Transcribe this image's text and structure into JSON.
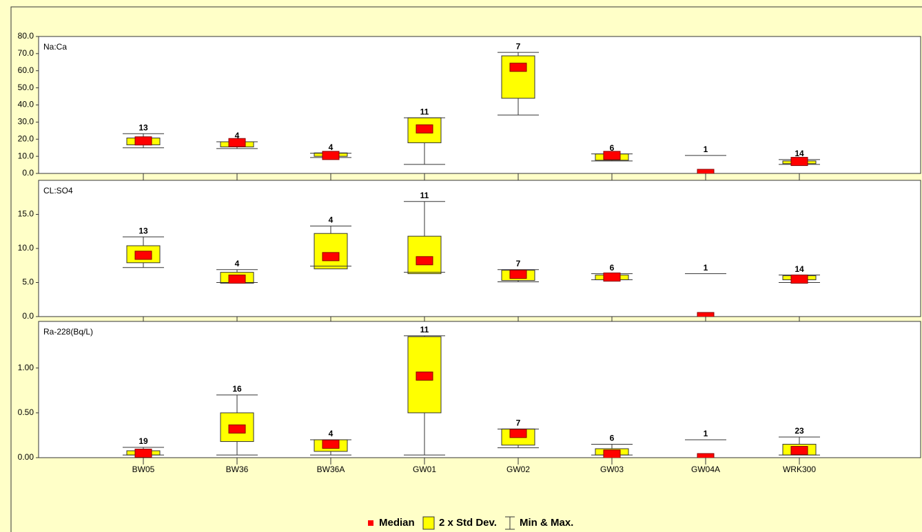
{
  "chart_data": {
    "type": "box",
    "categories": [
      "BW05",
      "BW36",
      "BW36A",
      "GW01",
      "GW02",
      "GW03",
      "GW04A",
      "WRK300"
    ],
    "legend": {
      "median": "Median",
      "box": "2 x Std Dev.",
      "whisker": "Min & Max."
    },
    "box_color": "#ffff00",
    "median_color": "#ff0000",
    "panels": [
      {
        "title": "Na:Ca",
        "ylim": [
          0,
          80
        ],
        "yticks": [
          {
            "value": 0,
            "label": "0.0"
          },
          {
            "value": 10,
            "label": "10.0"
          },
          {
            "value": 20,
            "label": "20.0"
          },
          {
            "value": 30,
            "label": "30.0"
          },
          {
            "value": 40,
            "label": "40.0"
          },
          {
            "value": 50,
            "label": "50.0"
          },
          {
            "value": 60,
            "label": "60.0"
          },
          {
            "value": 70,
            "label": "70.0"
          },
          {
            "value": 80,
            "label": "80.0"
          }
        ],
        "max": [
          23.2,
          18.5,
          11.8,
          32.5,
          70.7,
          11.4,
          10.5,
          8.1
        ],
        "box_high": [
          20.7,
          18.5,
          12,
          32.5,
          68.7,
          11.4,
          null,
          7.3
        ],
        "median": [
          19,
          18,
          10.5,
          26,
          62,
          10.5,
          0,
          7
        ],
        "box_low": [
          16.7,
          15.5,
          10,
          17.9,
          43.9,
          7.7,
          null,
          5.7
        ],
        "min": [
          15,
          14.5,
          9.3,
          5.3,
          34.1,
          7.3,
          null,
          5.3
        ],
        "count": [
          13,
          4,
          4,
          11,
          7,
          6,
          1,
          14
        ]
      },
      {
        "title": "CL:SO4",
        "ylim": [
          0,
          20
        ],
        "yticks": [
          {
            "value": 0,
            "label": "0.0"
          },
          {
            "value": 5,
            "label": "5.0"
          },
          {
            "value": 10,
            "label": "10.0"
          },
          {
            "value": 15,
            "label": "15.0"
          }
        ],
        "max": [
          11.7,
          6.9,
          13.3,
          16.9,
          6.9,
          6.3,
          6.3,
          6.1
        ],
        "box_high": [
          10.4,
          6.5,
          12.2,
          11.8,
          6.8,
          6.1,
          null,
          6.0
        ],
        "median": [
          9.0,
          5.5,
          8.8,
          8.2,
          6.2,
          5.8,
          0,
          5.5
        ],
        "box_low": [
          7.9,
          4.9,
          7.0,
          6.3,
          5.3,
          5.4,
          null,
          5.4
        ],
        "min": [
          7.2,
          5.0,
          7.4,
          6.5,
          5.1,
          5.4,
          null,
          5.0
        ],
        "count": [
          13,
          4,
          4,
          11,
          7,
          6,
          1,
          14
        ]
      },
      {
        "title": "Ra-228(Bq/L)",
        "ylim": [
          0,
          1.52
        ],
        "yticks": [
          {
            "value": 0,
            "label": "0.00"
          },
          {
            "value": 0.5,
            "label": "0.50"
          },
          {
            "value": 1,
            "label": "1.00"
          }
        ],
        "max": [
          0.115,
          0.7,
          0.2,
          1.36,
          0.32,
          0.15,
          0.2,
          0.23
        ],
        "box_high": [
          0.077,
          0.5,
          0.2,
          1.35,
          0.32,
          0.1,
          null,
          0.15
        ],
        "median": [
          0.05,
          0.32,
          0.15,
          0.91,
          0.27,
          0.04,
          0,
          0.08
        ],
        "box_low": [
          0.03,
          0.18,
          0.07,
          0.5,
          0.14,
          0.03,
          null,
          0.03
        ],
        "min": [
          0.03,
          0.03,
          0.03,
          0.03,
          0.11,
          0.03,
          null,
          0.03
        ],
        "count": [
          19,
          16,
          4,
          11,
          7,
          6,
          1,
          23
        ]
      }
    ]
  }
}
